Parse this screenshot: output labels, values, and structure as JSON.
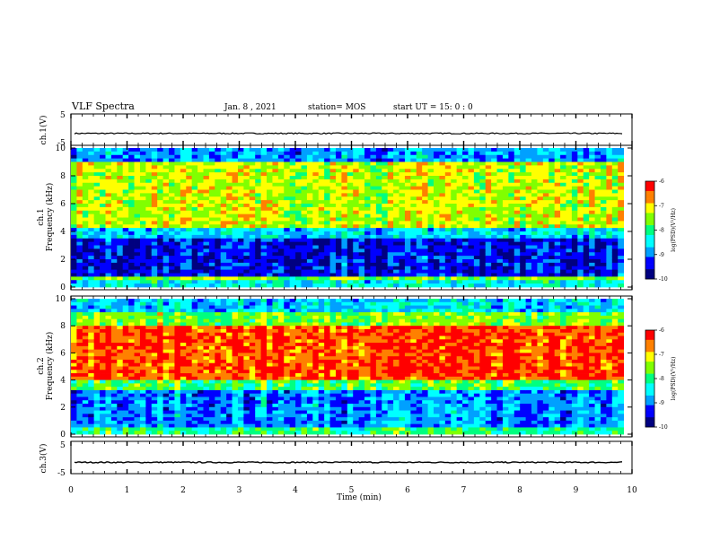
{
  "header": {
    "title": "VLF Spectra",
    "date": "Jan. 8 , 2021",
    "station": "station= MOS",
    "start_ut": "start UT = 15: 0 : 0"
  },
  "chart_data": [
    {
      "name": "ch1-voltage",
      "type": "line",
      "ylabel": "ch.1(V)",
      "ylim": [
        -5,
        5
      ],
      "yticks": [
        5,
        -5
      ],
      "xlim": [
        0,
        10
      ],
      "series": [
        {
          "values_level": -1.2
        }
      ]
    },
    {
      "name": "ch1-spectrogram",
      "type": "heatmap",
      "ylabel_line1": "ch.1",
      "ylabel_line2": "Frequency (kHz)",
      "ylim": [
        0,
        10
      ],
      "yticks": [
        "0",
        "2",
        "4",
        "6",
        "8",
        "10"
      ],
      "xlim": [
        0,
        9.85
      ],
      "colorbar": {
        "label": "log(PSD)(V²/Hz)",
        "ticks": [
          "-6",
          "-7",
          "-8",
          "-9",
          "-10"
        ],
        "range": [
          -10,
          -6
        ]
      },
      "bands_khz": [
        {
          "from": 0,
          "to": 0.4,
          "level": -8.4
        },
        {
          "from": 0.4,
          "to": 0.8,
          "level": -7.6
        },
        {
          "from": 0.8,
          "to": 3.5,
          "level": -9.4
        },
        {
          "from": 3.5,
          "to": 4.2,
          "level": -8.6
        },
        {
          "from": 4.2,
          "to": 9.0,
          "level": -7.3
        },
        {
          "from": 9.0,
          "to": 10,
          "level": -8.9
        }
      ]
    },
    {
      "name": "ch2-spectrogram",
      "type": "heatmap",
      "ylabel_line1": "ch.2",
      "ylabel_line2": "Frequency (kHz)",
      "ylim": [
        0,
        10
      ],
      "yticks": [
        "0",
        "2",
        "4",
        "6",
        "8",
        "10"
      ],
      "xlim": [
        0,
        9.85
      ],
      "colorbar": {
        "label": "log(PSD)(V²/Hz)",
        "ticks": [
          "-6",
          "-7",
          "-8",
          "-9",
          "-10"
        ],
        "range": [
          -10,
          -6
        ]
      },
      "bands_khz": [
        {
          "from": 0,
          "to": 0.4,
          "level": -8.0
        },
        {
          "from": 0.4,
          "to": 3.2,
          "level": -8.9
        },
        {
          "from": 3.2,
          "to": 4.0,
          "level": -7.8
        },
        {
          "from": 4.0,
          "to": 8.0,
          "level": -6.4
        },
        {
          "from": 8.0,
          "to": 9.0,
          "level": -7.6
        },
        {
          "from": 9.0,
          "to": 10,
          "level": -8.6
        }
      ]
    },
    {
      "name": "ch3-voltage",
      "type": "line",
      "ylabel": "ch.3(V)",
      "ylim": [
        -5,
        5
      ],
      "yticks": [
        5,
        -5
      ],
      "xlim": [
        0,
        10
      ],
      "series": [
        {
          "values_level": -1.5
        }
      ]
    }
  ],
  "xaxis": {
    "label": "Time (min)",
    "ticks": [
      "0",
      "1",
      "2",
      "3",
      "4",
      "5",
      "6",
      "7",
      "8",
      "9",
      "10"
    ]
  },
  "colormap": [
    "#000080",
    "#0000ff",
    "#00a0ff",
    "#00ffff",
    "#00ff80",
    "#80ff00",
    "#ffff00",
    "#ff8000",
    "#ff0000",
    "#ffffff"
  ]
}
